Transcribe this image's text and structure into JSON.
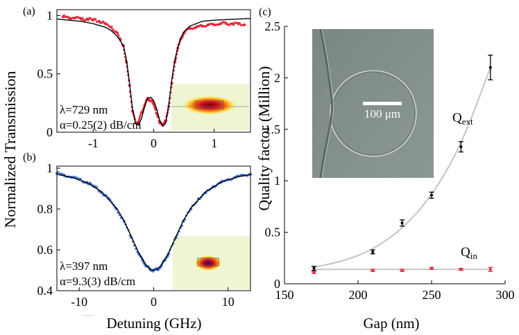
{
  "figure_labels": {
    "a": "(a)",
    "b": "(b)",
    "c": "(c)"
  },
  "shared_ylabel": "Normalized Transmission",
  "chart_data": [
    {
      "id": "a",
      "type": "line",
      "title": "",
      "xlabel": "",
      "ylabel": "Normalized Transmission",
      "xlim": [
        -1.6,
        1.6
      ],
      "ylim": [
        0,
        1.05
      ],
      "xticks": [
        -1,
        0,
        1
      ],
      "yticks": [
        0,
        0.5,
        1
      ],
      "annotations": [
        "λ=729 nm",
        "α=0.25(2) dB/cm"
      ],
      "series": [
        {
          "name": "measured",
          "color": "#e8283a",
          "marker": "dot",
          "x": [
            -1.5,
            -1.4,
            -1.3,
            -1.2,
            -1.1,
            -1.0,
            -0.9,
            -0.8,
            -0.7,
            -0.6,
            -0.5,
            -0.45,
            -0.4,
            -0.35,
            -0.3,
            -0.25,
            -0.2,
            -0.15,
            -0.1,
            -0.05,
            0.0,
            0.05,
            0.1,
            0.15,
            0.2,
            0.25,
            0.3,
            0.35,
            0.4,
            0.45,
            0.5,
            0.6,
            0.7,
            0.8,
            0.9,
            1.0,
            1.1,
            1.2,
            1.3,
            1.4,
            1.5
          ],
          "values": [
            0.99,
            0.98,
            0.98,
            0.97,
            0.97,
            0.96,
            0.95,
            0.93,
            0.9,
            0.85,
            0.74,
            0.6,
            0.4,
            0.18,
            0.08,
            0.09,
            0.17,
            0.23,
            0.29,
            0.27,
            0.24,
            0.16,
            0.08,
            0.07,
            0.1,
            0.22,
            0.42,
            0.6,
            0.72,
            0.8,
            0.85,
            0.89,
            0.9,
            0.91,
            0.92,
            0.92,
            0.93,
            0.93,
            0.93,
            0.93,
            0.92
          ]
        },
        {
          "name": "fit",
          "color": "#000000",
          "marker": "none",
          "x": [
            -1.6,
            -1.4,
            -1.2,
            -1.0,
            -0.8,
            -0.7,
            -0.6,
            -0.5,
            -0.45,
            -0.4,
            -0.35,
            -0.3,
            -0.25,
            -0.2,
            -0.15,
            -0.1,
            -0.05,
            0.0,
            0.05,
            0.1,
            0.15,
            0.2,
            0.25,
            0.3,
            0.35,
            0.4,
            0.45,
            0.5,
            0.6,
            0.7,
            0.8,
            1.0,
            1.2,
            1.4,
            1.6
          ],
          "values": [
            0.97,
            0.96,
            0.95,
            0.93,
            0.9,
            0.87,
            0.82,
            0.74,
            0.62,
            0.42,
            0.2,
            0.08,
            0.06,
            0.12,
            0.22,
            0.29,
            0.3,
            0.27,
            0.2,
            0.1,
            0.05,
            0.08,
            0.24,
            0.45,
            0.62,
            0.73,
            0.81,
            0.86,
            0.91,
            0.93,
            0.95,
            0.96,
            0.965,
            0.97,
            0.975
          ]
        }
      ]
    },
    {
      "id": "b",
      "type": "line",
      "title": "",
      "xlabel": "Detuning (GHz)",
      "ylabel": "",
      "xlim": [
        -13,
        13
      ],
      "ylim": [
        0.4,
        1.01
      ],
      "xticks": [
        -10,
        0,
        10
      ],
      "yticks": [
        0.4,
        0.6,
        0.8,
        1
      ],
      "annotations": [
        "λ=397 nm",
        "α=9.3(3) dB/cm"
      ],
      "series": [
        {
          "name": "measured",
          "color": "#3a6fd8",
          "marker": "dot",
          "x": [
            -13,
            -12,
            -11,
            -10,
            -9,
            -8,
            -7,
            -6,
            -5,
            -4,
            -3,
            -2,
            -1.5,
            -1,
            -0.5,
            0,
            0.5,
            1,
            1.5,
            2,
            3,
            4,
            5,
            6,
            7,
            8,
            9,
            10,
            11,
            12,
            13
          ],
          "values": [
            0.975,
            0.965,
            0.955,
            0.945,
            0.93,
            0.91,
            0.88,
            0.85,
            0.8,
            0.74,
            0.66,
            0.58,
            0.55,
            0.52,
            0.505,
            0.5,
            0.505,
            0.52,
            0.55,
            0.58,
            0.66,
            0.74,
            0.8,
            0.85,
            0.88,
            0.91,
            0.93,
            0.945,
            0.955,
            0.965,
            0.97
          ]
        },
        {
          "name": "fit",
          "color": "#000000",
          "marker": "none",
          "x": [
            -13,
            -11,
            -9,
            -7,
            -5,
            -4,
            -3,
            -2,
            -1,
            -0.5,
            0,
            0.5,
            1,
            2,
            3,
            4,
            5,
            7,
            9,
            11,
            13
          ],
          "values": [
            0.97,
            0.955,
            0.93,
            0.885,
            0.805,
            0.745,
            0.665,
            0.585,
            0.525,
            0.505,
            0.5,
            0.505,
            0.525,
            0.585,
            0.665,
            0.745,
            0.805,
            0.885,
            0.93,
            0.955,
            0.97
          ]
        }
      ]
    },
    {
      "id": "c",
      "type": "scatter",
      "title": "",
      "xlabel": "Gap (nm)",
      "ylabel": "Quality factor (Million)",
      "xlim": [
        150,
        300
      ],
      "ylim": [
        0,
        2.5
      ],
      "xticks": [
        150,
        200,
        250,
        300
      ],
      "yticks": [
        0,
        0.5,
        1,
        1.5,
        2,
        2.5
      ],
      "inset_scalebar": "100 μm",
      "series": [
        {
          "name": "Qext",
          "label_main": "Q",
          "label_sub": "ext",
          "color": "#000000",
          "x": [
            170,
            210,
            230,
            250,
            270,
            290
          ],
          "values": [
            0.15,
            0.31,
            0.59,
            0.86,
            1.33,
            2.1
          ],
          "errors": [
            0.02,
            0.02,
            0.03,
            0.03,
            0.05,
            0.12
          ]
        },
        {
          "name": "Qin",
          "label_main": "Q",
          "label_sub": "in",
          "color": "#e8283a",
          "x": [
            170,
            210,
            230,
            250,
            270,
            290
          ],
          "values": [
            0.11,
            0.13,
            0.13,
            0.15,
            0.14,
            0.14
          ],
          "errors": [
            0.01,
            0.01,
            0.01,
            0.01,
            0.01,
            0.02
          ]
        },
        {
          "name": "Qext fit",
          "color": "#c8c8c8",
          "x": [
            170,
            190,
            210,
            230,
            250,
            270,
            290
          ],
          "values": [
            0.16,
            0.22,
            0.33,
            0.53,
            0.85,
            1.34,
            2.1
          ]
        },
        {
          "name": "Qin fit",
          "color": "#c8c8c8",
          "x": [
            170,
            290
          ],
          "values": [
            0.14,
            0.14
          ]
        }
      ]
    }
  ]
}
